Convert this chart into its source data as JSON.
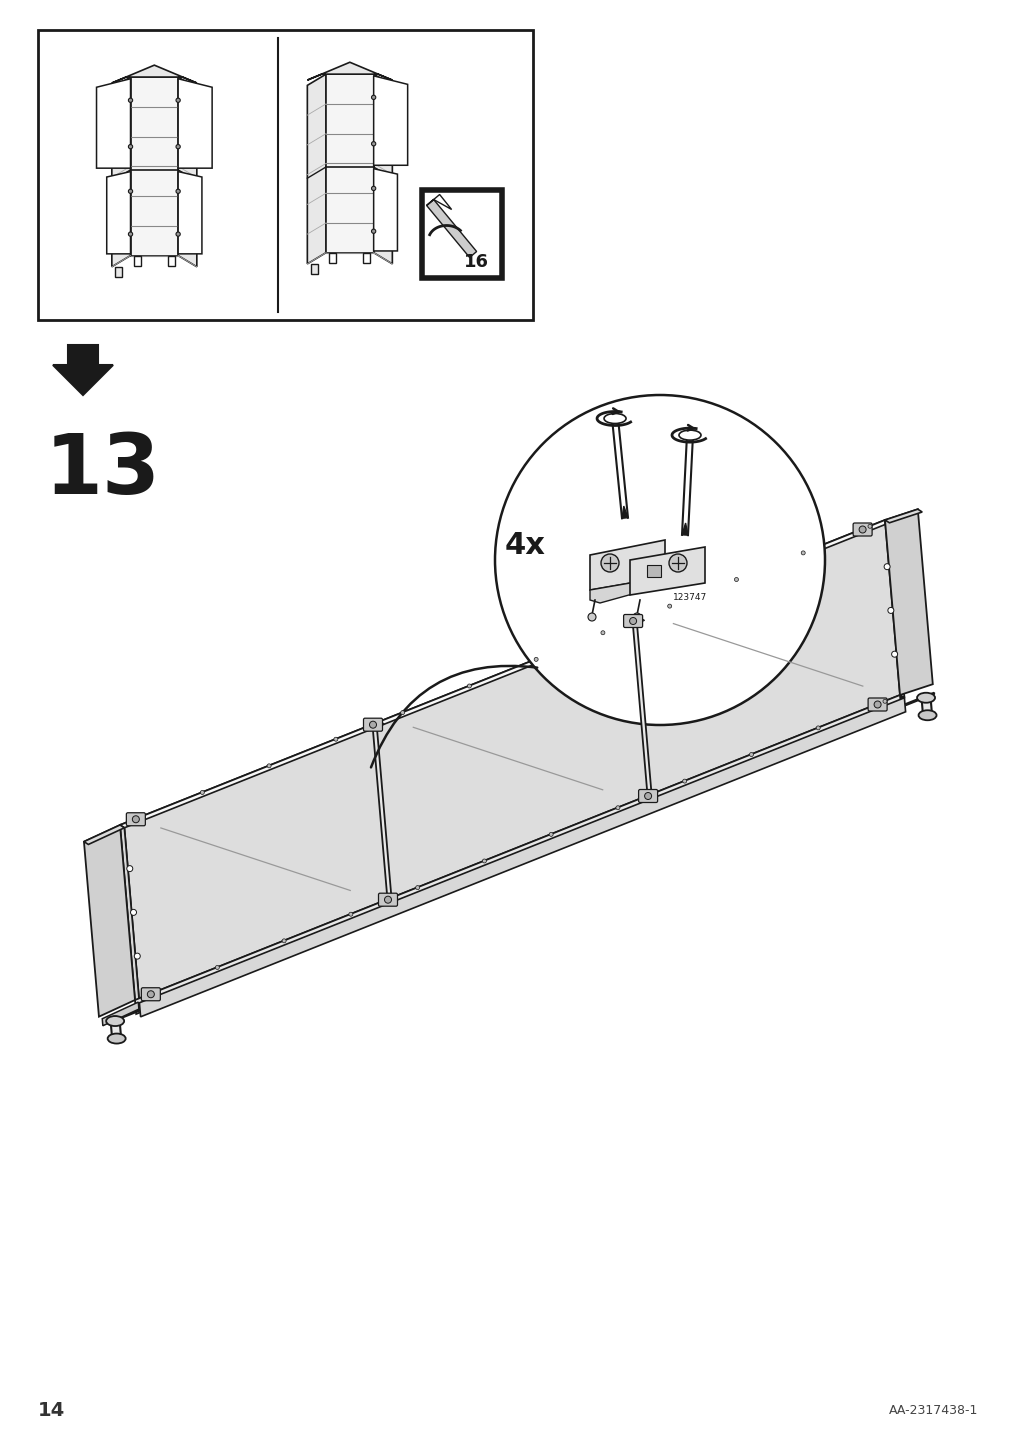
{
  "background_color": "#ffffff",
  "page_number": "14",
  "doc_ref": "AA-2317438-1",
  "step_number": "13",
  "screw_count": "4x",
  "page_ref": "16",
  "fig_width": 10.12,
  "fig_height": 14.32,
  "dpi": 100,
  "color_line": "#1a1a1a",
  "color_fill_light": "#f5f5f5",
  "color_fill_mid": "#e8e8e8",
  "color_fill_dark": "#d8d8d8"
}
